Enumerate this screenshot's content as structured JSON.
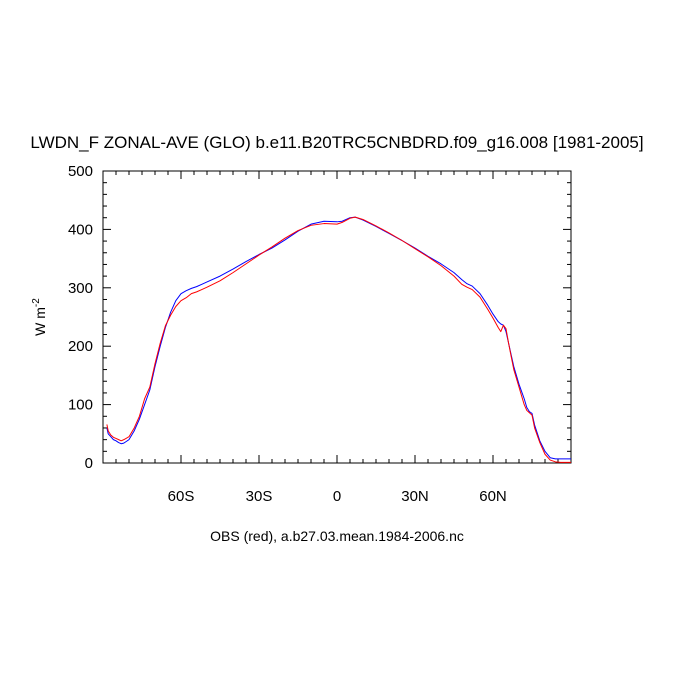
{
  "chart_data": {
    "type": "line",
    "title": "LWDN_F ZONAL-AVE (GLO) b.e11.B20TRC5CNBDRD.f09_g16.008 [1981-2005]",
    "ylabel_main": "W m",
    "ylabel_sup": "-2",
    "xlabel": "OBS (red), a.b27.03.mean.1984-2006.nc",
    "xlim": [
      -90,
      90
    ],
    "ylim": [
      0,
      500
    ],
    "x_ticks": [
      {
        "value": -60,
        "label": "60S"
      },
      {
        "value": -30,
        "label": "30S"
      },
      {
        "value": 0,
        "label": "0"
      },
      {
        "value": 30,
        "label": "30N"
      },
      {
        "value": 60,
        "label": "60N"
      }
    ],
    "y_ticks": [
      {
        "value": 0,
        "label": "0"
      },
      {
        "value": 100,
        "label": "100"
      },
      {
        "value": 200,
        "label": "200"
      },
      {
        "value": 300,
        "label": "300"
      },
      {
        "value": 400,
        "label": "400"
      },
      {
        "value": 500,
        "label": "500"
      }
    ],
    "grid": false,
    "series": [
      {
        "color": "#0000ff",
        "x": [
          -88.5,
          -88,
          -87,
          -86,
          -85,
          -84,
          -83,
          -82,
          -80,
          -78,
          -76,
          -74,
          -72,
          -70,
          -68,
          -66,
          -64,
          -62,
          -60,
          -58,
          -56,
          -54,
          -52,
          -50,
          -45,
          -40,
          -35,
          -30,
          -25,
          -20,
          -15,
          -10,
          -5,
          0,
          2,
          5,
          7,
          10,
          15,
          20,
          25,
          30,
          35,
          40,
          45,
          48,
          50,
          52,
          55,
          58,
          60,
          62,
          63,
          64,
          65,
          66,
          67,
          68,
          70,
          72,
          73,
          74,
          75,
          76,
          78,
          80,
          82,
          84,
          86,
          88,
          90
        ],
        "y": [
          60,
          50,
          45,
          40,
          38,
          35,
          33,
          34,
          40,
          55,
          75,
          100,
          125,
          165,
          200,
          232,
          258,
          278,
          290,
          295,
          299,
          302,
          306,
          310,
          320,
          332,
          345,
          357,
          368,
          382,
          397,
          409,
          414,
          413,
          414,
          420,
          421,
          416,
          405,
          393,
          381,
          368,
          354,
          341,
          326,
          314,
          307,
          303,
          290,
          270,
          255,
          242,
          238,
          236,
          225,
          205,
          185,
          165,
          135,
          110,
          95,
          88,
          85,
          65,
          38,
          20,
          9,
          7,
          7,
          7,
          7
        ]
      },
      {
        "color": "#ff0000",
        "x": [
          -88.5,
          -88,
          -87,
          -86,
          -85,
          -84,
          -83,
          -82,
          -80,
          -78,
          -76,
          -74,
          -72,
          -70,
          -68,
          -66,
          -64,
          -62,
          -60,
          -58,
          -56,
          -54,
          -52,
          -50,
          -45,
          -40,
          -35,
          -30,
          -25,
          -20,
          -15,
          -10,
          -5,
          0,
          2,
          5,
          7,
          10,
          15,
          20,
          25,
          30,
          35,
          40,
          45,
          48,
          50,
          52,
          55,
          58,
          60,
          62,
          63,
          64,
          65,
          66,
          67,
          68,
          70,
          72,
          73,
          74,
          75,
          76,
          78,
          80,
          82,
          84,
          86,
          88,
          90
        ],
        "y": [
          66,
          55,
          48,
          44,
          42,
          40,
          38,
          40,
          45,
          60,
          80,
          110,
          130,
          170,
          205,
          235,
          253,
          268,
          278,
          283,
          290,
          293,
          297,
          301,
          312,
          326,
          341,
          356,
          370,
          385,
          398,
          407,
          410,
          409,
          412,
          419,
          421,
          417,
          406,
          394,
          381,
          367,
          353,
          338,
          320,
          306,
          301,
          297,
          284,
          263,
          248,
          232,
          225,
          236,
          230,
          205,
          182,
          160,
          130,
          100,
          90,
          86,
          82,
          60,
          35,
          15,
          5,
          2,
          1,
          1,
          1
        ]
      }
    ]
  }
}
